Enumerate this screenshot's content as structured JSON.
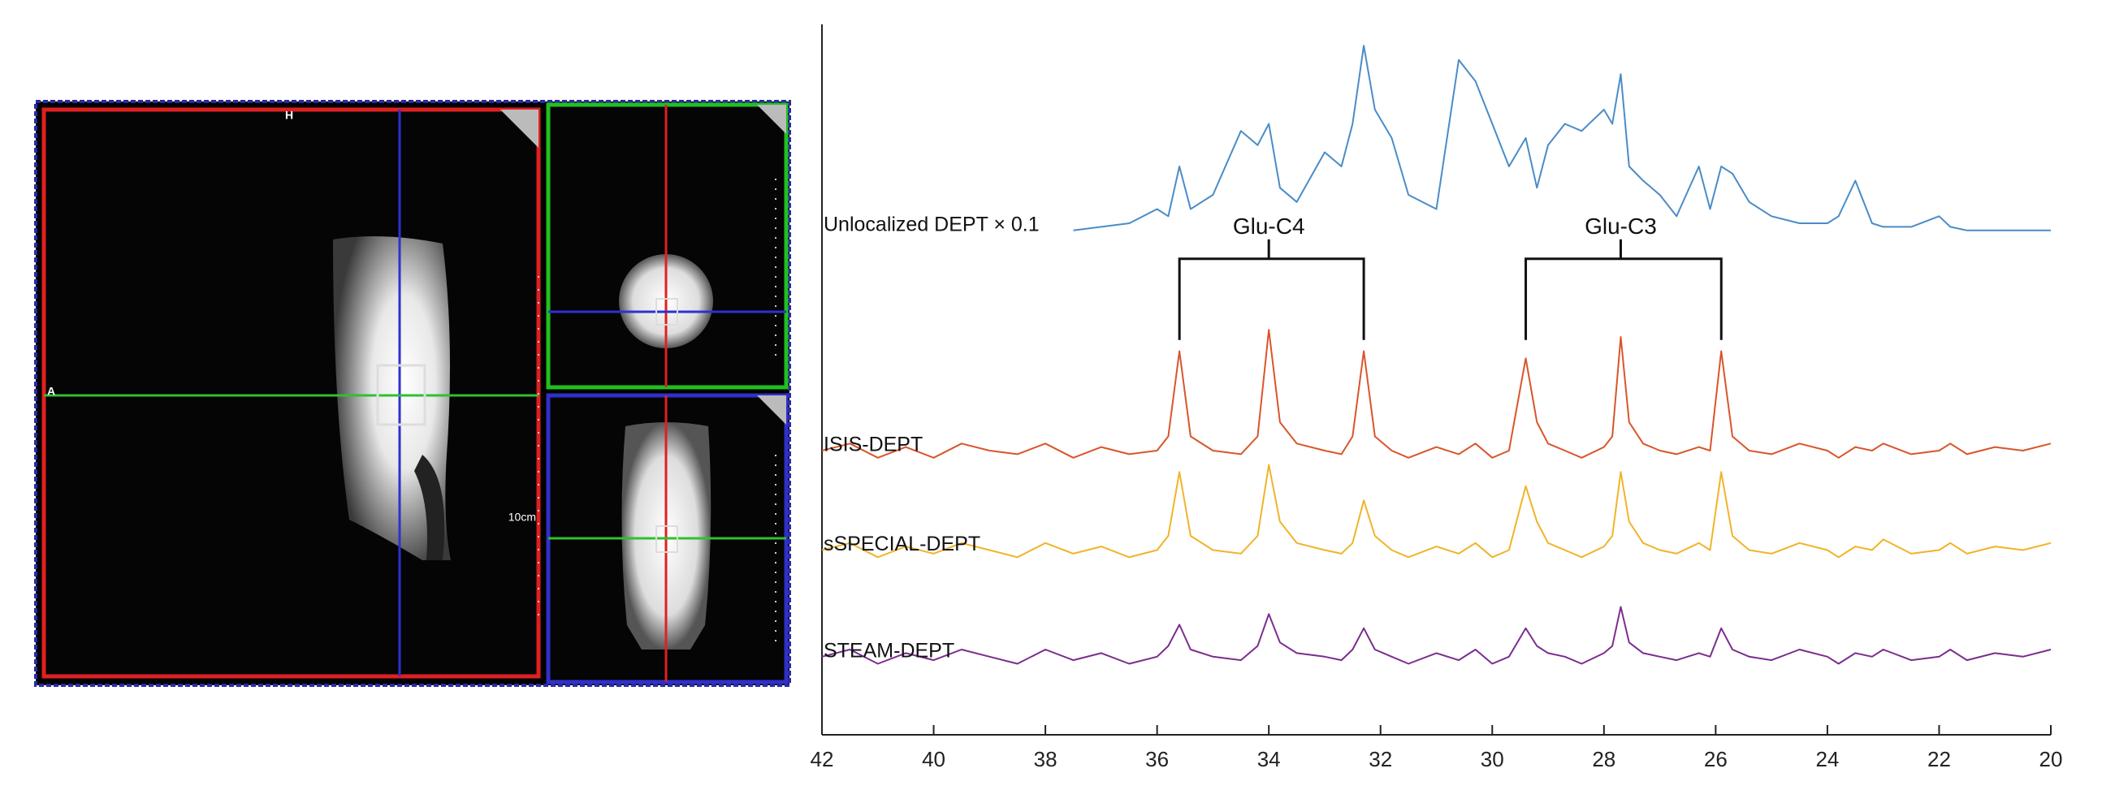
{
  "mri": {
    "labels": {
      "head": "H",
      "anterior": "A",
      "scale": "10cm"
    }
  },
  "chart_data": {
    "type": "line",
    "x": [
      42,
      41.5,
      41,
      40.5,
      40,
      39.5,
      39,
      38.5,
      38,
      37.5,
      37,
      36.5,
      36,
      35.8,
      35.6,
      35.4,
      35,
      34.5,
      34.2,
      34.0,
      33.8,
      33.5,
      33,
      32.7,
      32.5,
      32.3,
      32.1,
      31.8,
      31.5,
      31,
      30.6,
      30.3,
      30,
      29.7,
      29.4,
      29.2,
      29,
      28.7,
      28.4,
      28,
      27.85,
      27.7,
      27.55,
      27.3,
      27,
      26.7,
      26.3,
      26.1,
      25.9,
      25.7,
      25.4,
      25,
      24.5,
      24,
      23.8,
      23.5,
      23.2,
      23,
      22.5,
      22,
      21.8,
      21.5,
      21,
      20.5,
      20
    ],
    "xlim": [
      42,
      20
    ],
    "xticks": [
      42,
      40,
      38,
      36,
      34,
      32,
      30,
      28,
      26,
      24,
      22,
      20
    ],
    "ylim": [
      0,
      100
    ],
    "series": [
      {
        "name": "Unlocalized DEPT × 0.1",
        "color": "#4a8cc7",
        "values": [
          null,
          null,
          null,
          null,
          null,
          null,
          null,
          null,
          null,
          71,
          71.5,
          72,
          74,
          73,
          80,
          74,
          76,
          85,
          83,
          86,
          77,
          75,
          82,
          80,
          86,
          97,
          88,
          84,
          76,
          74,
          95,
          92,
          86,
          80,
          84,
          77,
          83,
          86,
          85,
          88,
          86,
          93,
          80,
          78,
          76,
          73,
          80,
          74,
          80,
          79,
          75,
          73,
          72,
          72,
          73,
          78,
          72,
          71.5,
          71.5,
          73,
          71.5,
          71,
          71,
          71,
          71
        ]
      },
      {
        "name": "ISIS-DEPT",
        "color": "#d9552b",
        "values": [
          40,
          41,
          39,
          40.5,
          39,
          41,
          40,
          39.5,
          41,
          39,
          40.5,
          39.5,
          40,
          42,
          54,
          42,
          40,
          39.5,
          42,
          57,
          44,
          41,
          40,
          39.5,
          42,
          54,
          42,
          40,
          39,
          40.5,
          39.5,
          41,
          39,
          40,
          53,
          44,
          41,
          40,
          39,
          40.5,
          42,
          56,
          44,
          41,
          40,
          39.5,
          40.5,
          40,
          54,
          42,
          40,
          39.5,
          41,
          40,
          39,
          40.5,
          40,
          41,
          39.5,
          40,
          41,
          39.5,
          40.5,
          40,
          41
        ]
      },
      {
        "name": "sSPECIAL-DEPT",
        "color": "#f0b429",
        "values": [
          26,
          27,
          25,
          26.5,
          25.5,
          27,
          26,
          25,
          27,
          25.5,
          26.5,
          25,
          26,
          28,
          37,
          28,
          26,
          25.5,
          28,
          38,
          30,
          27,
          26,
          25.5,
          27,
          33,
          28,
          26,
          25,
          26.5,
          25.5,
          27,
          25,
          26,
          35,
          30,
          27,
          26,
          25,
          26.5,
          28,
          37,
          30,
          27,
          26,
          25.5,
          27,
          26,
          37,
          28,
          26,
          25.5,
          27,
          26,
          25,
          26.5,
          26,
          27.5,
          25.5,
          26,
          27,
          25.5,
          26.5,
          26,
          27
        ]
      },
      {
        "name": "STEAM-DEPT",
        "color": "#7b2d8e",
        "values": [
          11,
          12,
          10,
          11.5,
          10.5,
          12,
          11,
          10,
          12,
          10.5,
          11.5,
          10,
          11,
          12.5,
          15.5,
          12,
          11,
          10.5,
          12.5,
          17,
          13,
          11.5,
          11,
          10.5,
          12,
          15,
          12,
          11,
          10,
          11.5,
          10.5,
          12,
          10,
          11,
          15,
          12.5,
          11.5,
          11,
          10,
          11.5,
          12.5,
          18,
          13,
          11.5,
          11,
          10.5,
          11.5,
          11,
          15,
          12,
          11,
          10.5,
          12,
          11,
          10,
          11.5,
          11,
          12,
          10.5,
          11,
          12,
          10.5,
          11.5,
          11,
          12
        ]
      }
    ],
    "annotations": [
      {
        "text": "Glu-C4",
        "x_left": 35.6,
        "x_center": 34.0,
        "x_right": 32.3,
        "y": 67
      },
      {
        "text": "Glu-C3",
        "x_left": 29.4,
        "x_center": 27.7,
        "x_right": 25.9,
        "y": 67
      }
    ]
  }
}
